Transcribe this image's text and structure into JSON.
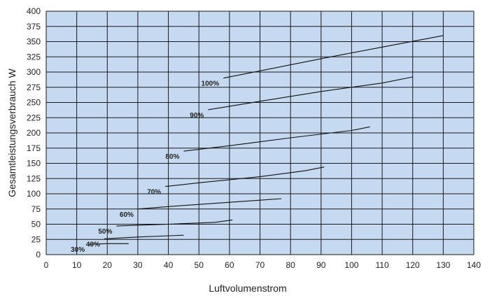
{
  "chart_data": {
    "type": "line",
    "title": "",
    "xlabel": "Luftvolumenstrom",
    "ylabel": "Gesamtleistungsverbrauch W",
    "xlim": [
      0,
      140
    ],
    "ylim": [
      0,
      400
    ],
    "x_ticks": [
      0,
      10,
      20,
      30,
      40,
      50,
      60,
      70,
      80,
      90,
      100,
      110,
      120,
      130,
      140
    ],
    "y_ticks": [
      0,
      25,
      50,
      75,
      100,
      125,
      150,
      175,
      200,
      225,
      250,
      275,
      300,
      325,
      350,
      375,
      400
    ],
    "grid": true,
    "plot_background": "#c5d9f1",
    "line_color": "#111111",
    "series": [
      {
        "name": "100%",
        "points": [
          [
            58,
            290
          ],
          [
            70,
            302
          ],
          [
            90,
            322
          ],
          [
            110,
            341
          ],
          [
            130,
            360
          ]
        ]
      },
      {
        "name": "90%",
        "points": [
          [
            53,
            238
          ],
          [
            70,
            252
          ],
          [
            90,
            268
          ],
          [
            110,
            282
          ],
          [
            120,
            292
          ]
        ]
      },
      {
        "name": "80%",
        "points": [
          [
            45,
            170
          ],
          [
            60,
            179
          ],
          [
            80,
            192
          ],
          [
            100,
            204
          ],
          [
            106,
            210
          ]
        ]
      },
      {
        "name": "70%",
        "points": [
          [
            39,
            112
          ],
          [
            50,
            118
          ],
          [
            70,
            128
          ],
          [
            85,
            138
          ],
          [
            91,
            144
          ]
        ]
      },
      {
        "name": "60%",
        "points": [
          [
            30,
            75
          ],
          [
            40,
            79
          ],
          [
            60,
            86
          ],
          [
            77,
            92
          ]
        ]
      },
      {
        "name": "50%",
        "points": [
          [
            23,
            47
          ],
          [
            40,
            50
          ],
          [
            55,
            53
          ],
          [
            61,
            57
          ]
        ]
      },
      {
        "name": "40%",
        "points": [
          [
            19,
            26
          ],
          [
            30,
            29
          ],
          [
            45,
            32
          ]
        ]
      },
      {
        "name": "30%",
        "points": [
          [
            14,
            17
          ],
          [
            20,
            18
          ],
          [
            27,
            18
          ]
        ]
      }
    ]
  }
}
